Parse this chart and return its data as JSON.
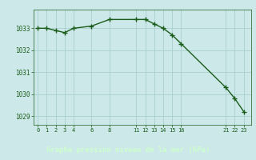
{
  "title": "Graphe pression niveau de la mer (hPa)",
  "x_values": [
    0,
    1,
    2,
    3,
    4,
    6,
    8,
    11,
    12,
    13,
    14,
    15,
    16,
    21,
    22,
    23
  ],
  "y_values": [
    1033.0,
    1033.0,
    1032.9,
    1032.8,
    1033.0,
    1033.1,
    1033.4,
    1033.4,
    1033.4,
    1033.2,
    1033.0,
    1032.7,
    1032.3,
    1030.3,
    1029.8,
    1029.2
  ],
  "x_ticks": [
    0,
    1,
    2,
    3,
    4,
    6,
    8,
    11,
    12,
    13,
    14,
    15,
    16,
    21,
    22,
    23
  ],
  "y_ticks": [
    1029,
    1030,
    1031,
    1032,
    1033
  ],
  "ylim": [
    1028.6,
    1033.85
  ],
  "xlim": [
    -0.5,
    23.8
  ],
  "line_color": "#1a5c1a",
  "bg_color": "#cce8e8",
  "grid_color": "#aacfcf",
  "title_color": "#1a5c1a",
  "tick_color": "#1a5c1a",
  "bottom_bar_color": "#2d7a2d",
  "title_text_color": "#ccffcc",
  "marker_size": 2.5,
  "line_width": 1.0
}
